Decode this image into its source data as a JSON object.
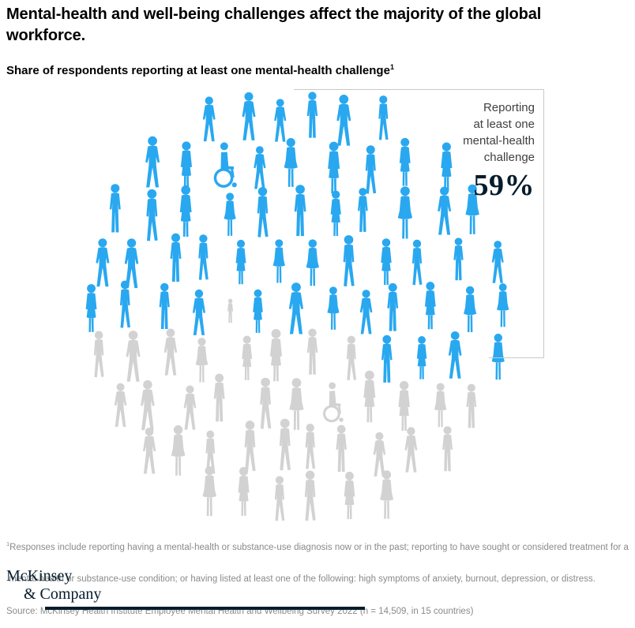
{
  "header": {
    "title_line1": "Mental-health and well-being challenges affect the majority of the global",
    "title_line2": "workforce.",
    "subtitle": "Share of respondents reporting at least one mental-health challenge",
    "subtitle_footnote_marker": "1"
  },
  "annotation": {
    "lines": [
      "Reporting",
      "at least one",
      "mental-health",
      "challenge"
    ],
    "value": "59%"
  },
  "chart_data": {
    "type": "pictogram",
    "title": "Share of respondents reporting at least one mental-health challenge",
    "highlighted_label": "Reporting at least one mental-health challenge",
    "highlighted_percent": 59,
    "total_percent": 100,
    "figure_count": 90,
    "highlighted_color": "#29a8f0",
    "muted_color": "#d2d2d2",
    "layout": "circular crowd of person silhouettes; top 59% highlighted blue, bottom 41% gray"
  },
  "footnote": {
    "marker": "1",
    "line1": "Responses include reporting having a mental-health or substance-use diagnosis now or in the past; reporting to have sought or considered treatment for a",
    "line2": " mental-health or substance-use condition; or having listed at least one of the following: high symptoms of anxiety, burnout, depression, or distress.",
    "line3": "Source: McKinsey Health Institute Employee Mental Health and Wellbeing Survey 2022 (n = 14,509, in 15 countries)"
  },
  "logo": {
    "line1": "McKinsey",
    "line2": "& Company"
  }
}
